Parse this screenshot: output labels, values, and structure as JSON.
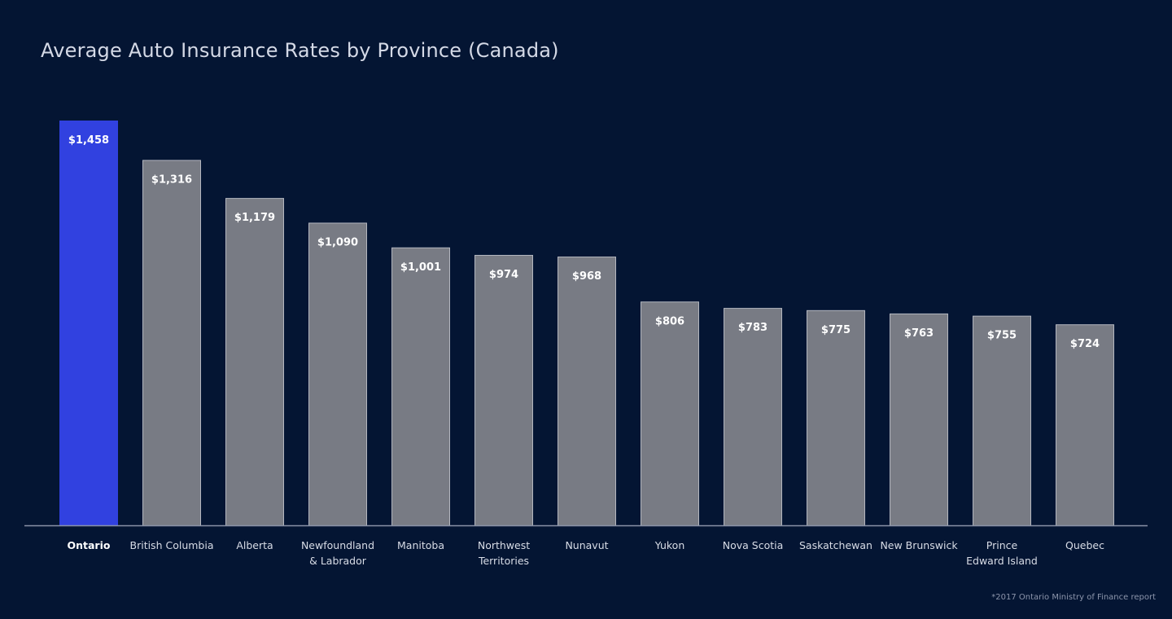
{
  "chart_data": {
    "type": "bar",
    "title": "Average Auto Insurance Rates by Province (Canada)",
    "xlabel": "",
    "ylabel": "",
    "ylim": [
      0,
      1458
    ],
    "grid": false,
    "legend": "none",
    "categories": [
      [
        "Ontario"
      ],
      [
        "British Columbia"
      ],
      [
        "Alberta"
      ],
      [
        "Newfoundland",
        "& Labrador"
      ],
      [
        "Manitoba"
      ],
      [
        "Northwest",
        "Territories"
      ],
      [
        "Nunavut"
      ],
      [
        "Yukon"
      ],
      [
        "Nova Scotia"
      ],
      [
        "Saskatchewan"
      ],
      [
        "New Brunswick"
      ],
      [
        "Prince",
        "Edward Island"
      ],
      [
        "Quebec"
      ]
    ],
    "values": [
      1458,
      1316,
      1179,
      1090,
      1001,
      974,
      968,
      806,
      783,
      775,
      763,
      755,
      724
    ],
    "value_labels": [
      "$1,458",
      "$1,316",
      "$1,179",
      "$1,090",
      "$1,001",
      "$974",
      "$968",
      "$806",
      "$783",
      "$775",
      "$763",
      "$755",
      "$724"
    ],
    "highlight_index": 0,
    "colors": {
      "background": "#041533",
      "highlight_bar": "#3141e0",
      "bar": "#787b84",
      "bar_border": "#b3b6bf",
      "axis": "#8a93a8"
    }
  },
  "footnote": "*2017 Ontario Ministry of Finance report"
}
